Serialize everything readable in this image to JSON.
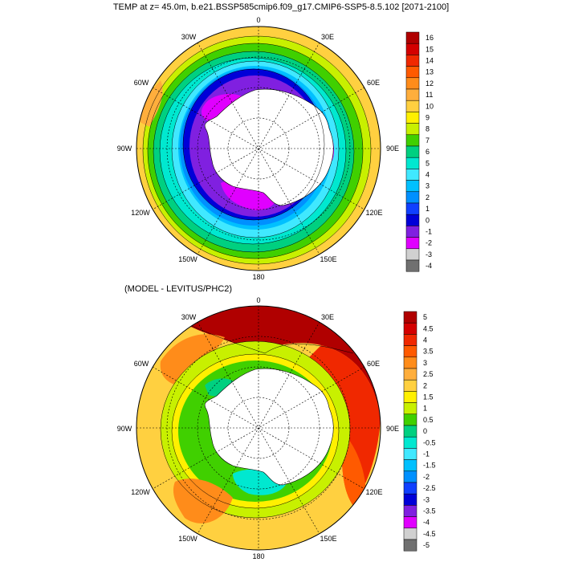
{
  "top_panel": {
    "title": "TEMP at z=  45.0m, b.e21.BSSP585cmip6.f09_g17.CMIP6-SSP5-8.5.102 [2071-2100]",
    "lon_labels": {
      "n": "0",
      "ne": "30E",
      "e1": "60E",
      "e": "90E",
      "se1": "120E",
      "se": "150E",
      "s": "180",
      "sw": "150W",
      "sw1": "120W",
      "w": "90W",
      "nw1": "60W",
      "nw": "30W"
    },
    "colorbar": {
      "ticks": [
        "16",
        "15",
        "14",
        "13",
        "12",
        "11",
        "10",
        "9",
        "8",
        "7",
        "6",
        "5",
        "4",
        "3",
        "2",
        "1",
        "0",
        "-1",
        "-2",
        "-3",
        "-4"
      ],
      "colors": [
        "#b00000",
        "#d40000",
        "#f02800",
        "#ff5a00",
        "#ff8c1a",
        "#ffae3c",
        "#ffd040",
        "#fff000",
        "#c8f000",
        "#40d000",
        "#00d080",
        "#00e8d0",
        "#40e8ff",
        "#00c0ff",
        "#0090ff",
        "#1040ff",
        "#0000d8",
        "#8020e0",
        "#e000ff",
        "#d0d0d0",
        "#707070"
      ]
    }
  },
  "bottom_panel": {
    "title": "(MODEL - LEVITUS/PHC2)",
    "lon_labels": {
      "n": "0",
      "ne": "30E",
      "e1": "60E",
      "e": "90E",
      "se1": "120E",
      "se": "150E",
      "s": "180",
      "sw": "150W",
      "sw1": "120W",
      "w": "90W",
      "nw1": "60W",
      "nw": "30W"
    },
    "colorbar": {
      "ticks": [
        "5",
        "4.5",
        "4",
        "3.5",
        "3",
        "2.5",
        "2",
        "1.5",
        "1",
        "0.5",
        "0",
        "-0.5",
        "-1",
        "-1.5",
        "-2",
        "-2.5",
        "-3",
        "-3.5",
        "-4",
        "-4.5",
        "-5"
      ],
      "colors": [
        "#b00000",
        "#d40000",
        "#f02800",
        "#ff5a00",
        "#ff8c1a",
        "#ffae3c",
        "#ffd040",
        "#fff000",
        "#c8f000",
        "#40d000",
        "#00d080",
        "#00e8d0",
        "#40e8ff",
        "#00c0ff",
        "#0090ff",
        "#1040ff",
        "#0000d8",
        "#8020e0",
        "#e000ff",
        "#d0d0d0",
        "#707070"
      ]
    }
  }
}
